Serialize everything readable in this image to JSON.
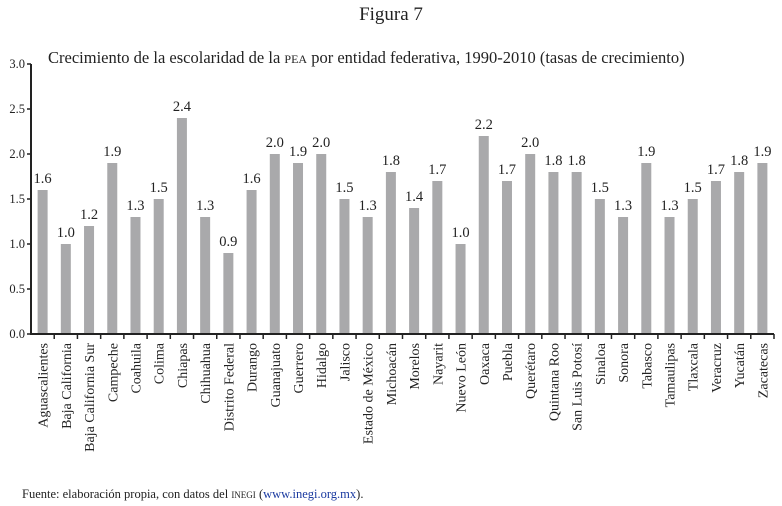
{
  "figure_label": "Figura 7",
  "source": {
    "prefix": "Fuente: elaboración propia, con datos del ",
    "org": "INEGI",
    "open": " (",
    "url": "www.inegi.org.mx",
    "close": ")."
  },
  "chart_data": {
    "type": "bar",
    "title_parts": {
      "before": "Crecimiento de la escolaridad de la ",
      "acronym": "PEA",
      "after": " por entidad federativa, 1990-2010 (tasas de crecimiento)"
    },
    "title": "Crecimiento de la escolaridad de la PEA por entidad federativa, 1990-2010 (tasas de crecimiento)",
    "xlabel": "",
    "ylabel": "",
    "ylim": [
      0,
      3.0
    ],
    "yticks": [
      "0.0",
      "0.5",
      "1.0",
      "1.5",
      "2.0",
      "2.5",
      "3.0"
    ],
    "grid": false,
    "bar_color": "#a9a9ab",
    "categories": [
      "Aguascalientes",
      "Baja California",
      "Baja California Sur",
      "Campeche",
      "Coahuila",
      "Colima",
      "Chiapas",
      "Chihuahua",
      "Distrito Federal",
      "Durango",
      "Guanajuato",
      "Guerrero",
      "Hidalgo",
      "Jalisco",
      "Estado de México",
      "Michoacán",
      "Morelos",
      "Nayarit",
      "Nuevo León",
      "Oaxaca",
      "Puebla",
      "Querétaro",
      "Quintana Roo",
      "San Luis Potosí",
      "Sinaloa",
      "Sonora",
      "Tabasco",
      "Tamaulipas",
      "Tlaxcala",
      "Veracruz",
      "Yucatán",
      "Zacatecas"
    ],
    "values": [
      1.6,
      1.0,
      1.2,
      1.9,
      1.3,
      1.5,
      2.4,
      1.3,
      0.9,
      1.6,
      2.0,
      1.9,
      2.0,
      1.5,
      1.3,
      1.8,
      1.4,
      1.7,
      1.0,
      2.2,
      1.7,
      2.0,
      1.8,
      1.8,
      1.5,
      1.3,
      1.9,
      1.3,
      1.5,
      1.7,
      1.8,
      1.9
    ],
    "data_labels": [
      "1.6",
      "1.0",
      "1.2",
      "1.9",
      "1.3",
      "1.5",
      "2.4",
      "1.3",
      "0.9",
      "1.6",
      "2.0",
      "1.9",
      "2.0",
      "1.5",
      "1.3",
      "1.8",
      "1.4",
      "1.7",
      "1.0",
      "2.2",
      "1.7",
      "2.0",
      "1.8",
      "1.8",
      "1.5",
      "1.3",
      "1.9",
      "1.3",
      "1.5",
      "1.7",
      "1.8",
      "1.9"
    ]
  }
}
